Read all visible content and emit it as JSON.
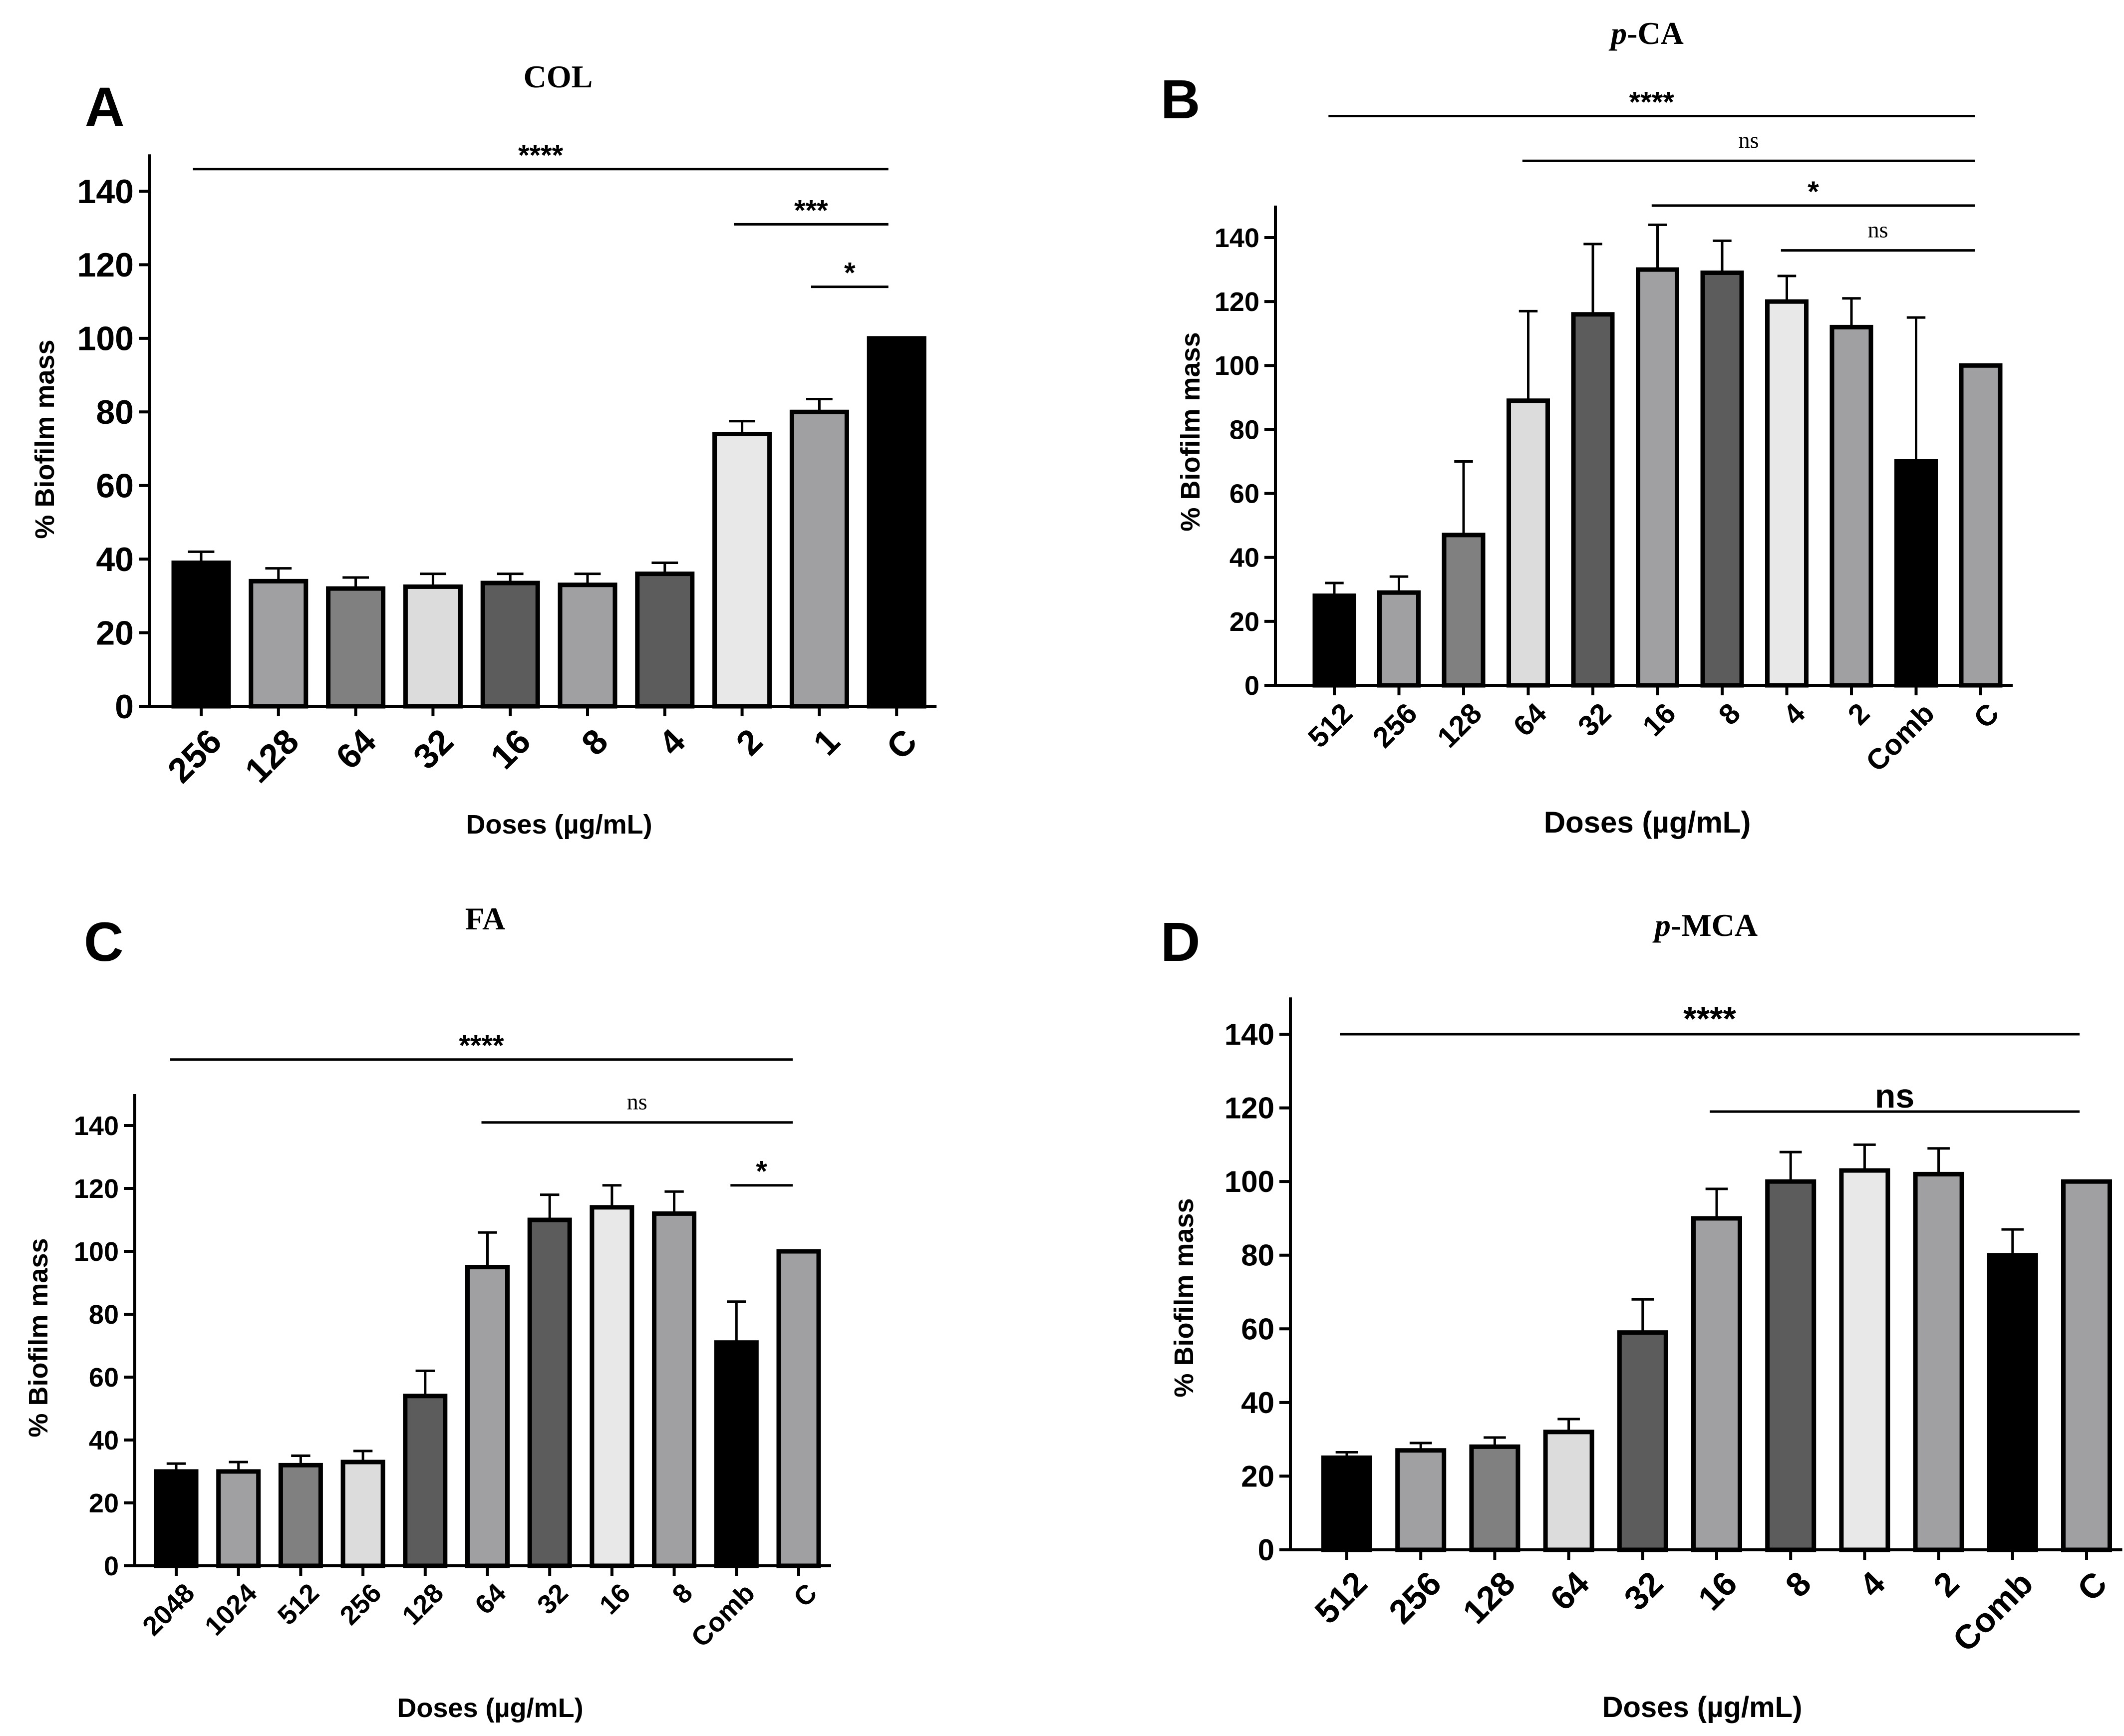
{
  "figure": {
    "panels": [
      {
        "letter": "A",
        "title_italic": "",
        "title_rest": "COL"
      },
      {
        "letter": "B",
        "title_italic": "p",
        "title_rest": "-CA"
      },
      {
        "letter": "C",
        "title_italic": "",
        "title_rest": "FA"
      },
      {
        "letter": "D",
        "title_italic": "p",
        "title_rest": "-MCA"
      }
    ]
  },
  "chart_data": [
    {
      "type": "bar",
      "title": "COL",
      "xlabel": "Doses (µg/mL)",
      "ylabel": "% Biofilm mass",
      "ylim": [
        0,
        150
      ],
      "yticks": [
        "0",
        "20",
        "40",
        "60",
        "80",
        "100",
        "120",
        "140"
      ],
      "categories": [
        "256",
        "128",
        "64",
        "32",
        "16",
        "8",
        "4",
        "2",
        "1",
        "C"
      ],
      "values": [
        39,
        34,
        32,
        32.5,
        33.5,
        33,
        36,
        74,
        80,
        100
      ],
      "errors": [
        3,
        3.5,
        3,
        3.5,
        2.5,
        3,
        3,
        3.5,
        3.5,
        0
      ],
      "fills": [
        "#000000",
        "#a0a0a3",
        "#808080",
        "#dcdcdc",
        "#5c5c5c",
        "#a0a0a3",
        "#5c5c5c",
        "#e8e8e8",
        "#a0a0a3",
        "#000000"
      ],
      "significance": [
        {
          "from": 0,
          "to": 9,
          "label": "****",
          "y": 146,
          "font": "sans"
        },
        {
          "from": 7,
          "to": 9,
          "label": "***",
          "y": 131,
          "font": "sans"
        },
        {
          "from": 8,
          "to": 9,
          "label": "*",
          "y": 114,
          "font": "sans"
        }
      ]
    },
    {
      "type": "bar",
      "title": "p-CA",
      "xlabel": "Doses (µg/mL)",
      "ylabel": "% Biofilm mass",
      "ylim": [
        0,
        150
      ],
      "yticks": [
        "0",
        "20",
        "40",
        "60",
        "80",
        "100",
        "120",
        "140"
      ],
      "categories": [
        "512",
        "256",
        "128",
        "64",
        "32",
        "16",
        "8",
        "4",
        "2",
        "Comb",
        "C"
      ],
      "values": [
        28,
        29,
        47,
        89,
        116,
        130,
        129,
        120,
        112,
        70,
        100
      ],
      "errors": [
        4,
        5,
        23,
        28,
        22,
        14,
        10,
        8,
        9,
        45,
        0
      ],
      "fills": [
        "#000000",
        "#a0a0a3",
        "#808080",
        "#dcdcdc",
        "#5c5c5c",
        "#a0a0a3",
        "#5c5c5c",
        "#e8e8e8",
        "#a0a0a3",
        "#000000",
        "#a0a0a3"
      ],
      "significance": [
        {
          "from": 0,
          "to": 10,
          "label": "****",
          "y": 178,
          "font": "sans"
        },
        {
          "from": 3,
          "to": 10,
          "label": "ns",
          "y": 164,
          "font": "serif"
        },
        {
          "from": 5,
          "to": 10,
          "label": "*",
          "y": 150,
          "font": "sans"
        },
        {
          "from": 7,
          "to": 10,
          "label": "ns",
          "y": 136,
          "font": "serif"
        }
      ]
    },
    {
      "type": "bar",
      "title": "FA",
      "xlabel": "Doses (µg/mL)",
      "ylabel": "% Biofilm mass",
      "ylim": [
        0,
        150
      ],
      "yticks": [
        "0",
        "20",
        "40",
        "60",
        "80",
        "100",
        "120",
        "140"
      ],
      "categories": [
        "2048",
        "1024",
        "512",
        "256",
        "128",
        "64",
        "32",
        "16",
        "8",
        "Comb",
        "C"
      ],
      "values": [
        30,
        30,
        32,
        33,
        54,
        95,
        110,
        114,
        112,
        71,
        100
      ],
      "errors": [
        2.5,
        3,
        3,
        3.5,
        8,
        11,
        8,
        7,
        7,
        13,
        0
      ],
      "fills": [
        "#000000",
        "#a0a0a3",
        "#808080",
        "#dcdcdc",
        "#5c5c5c",
        "#a0a0a3",
        "#5c5c5c",
        "#e8e8e8",
        "#a0a0a3",
        "#000000",
        "#a0a0a3"
      ],
      "significance": [
        {
          "from": 0,
          "to": 10,
          "label": "****",
          "y": 161,
          "font": "sans"
        },
        {
          "from": 5,
          "to": 10,
          "label": "ns",
          "y": 141,
          "font": "serif"
        },
        {
          "from": 9,
          "to": 10,
          "label": "*",
          "y": 121,
          "font": "sans"
        }
      ]
    },
    {
      "type": "bar",
      "title": "p-MCA",
      "xlabel": "Doses (µg/mL)",
      "ylabel": "% Biofilm mass",
      "ylim": [
        0,
        150
      ],
      "yticks": [
        "0",
        "20",
        "40",
        "60",
        "80",
        "100",
        "120",
        "140"
      ],
      "categories": [
        "512",
        "256",
        "128",
        "64",
        "32",
        "16",
        "8",
        "4",
        "2",
        "Comb",
        "C"
      ],
      "values": [
        25,
        27,
        28,
        32,
        59,
        90,
        100,
        103,
        102,
        80,
        100
      ],
      "errors": [
        1.5,
        2,
        2.5,
        3.5,
        9,
        8,
        8,
        7,
        7,
        7,
        0
      ],
      "fills": [
        "#000000",
        "#a0a0a3",
        "#808080",
        "#dcdcdc",
        "#5c5c5c",
        "#a0a0a3",
        "#5c5c5c",
        "#e8e8e8",
        "#a0a0a3",
        "#000000",
        "#a0a0a3"
      ],
      "significance": [
        {
          "from": 0,
          "to": 10,
          "label": "****",
          "y": 140,
          "font": "sans"
        },
        {
          "from": 5,
          "to": 10,
          "label": "ns",
          "y": 119,
          "font": "sans"
        }
      ]
    }
  ]
}
